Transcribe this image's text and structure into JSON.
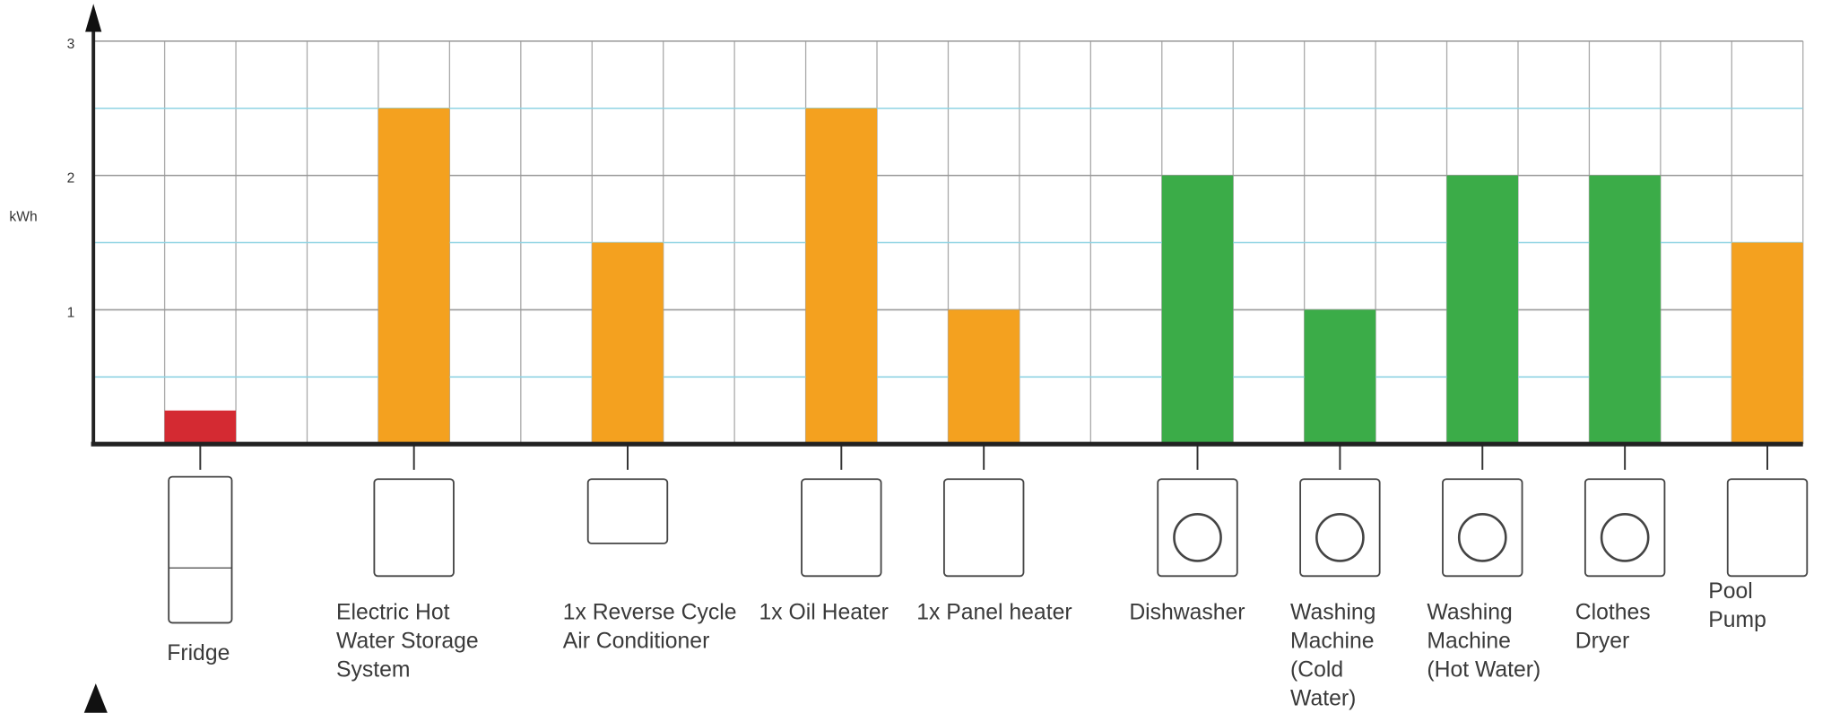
{
  "chart_data": {
    "type": "bar",
    "y_label": "kWh",
    "categories": [
      [
        "Fridge"
      ],
      [
        "Electric Hot",
        "Water Storage",
        "System"
      ],
      [
        "1x Reverse Cycle",
        "Air Conditioner"
      ],
      [
        "1x Oil Heater"
      ],
      [
        "1x Panel heater"
      ],
      [
        "Dishwasher"
      ],
      [
        "Washing",
        "Machine",
        "(Cold",
        "Water)"
      ],
      [
        "Washing",
        "Machine",
        "(Hot Water)"
      ],
      [
        "Clothes",
        "Dryer"
      ],
      [
        "Pool",
        "Pump"
      ]
    ],
    "values": [
      0.25,
      2.5,
      1.5,
      2.5,
      1,
      2,
      1,
      2,
      2,
      1.5
    ],
    "colors": [
      "#d42a32",
      "#f4a11f",
      "#f4a11f",
      "#f4a11f",
      "#f4a11f",
      "#3bac48",
      "#3bac48",
      "#3bac48",
      "#3bac48",
      "#f4a11f"
    ],
    "ylim": [
      0,
      3
    ],
    "yticks": [
      1,
      2,
      3
    ],
    "grid": true
  }
}
